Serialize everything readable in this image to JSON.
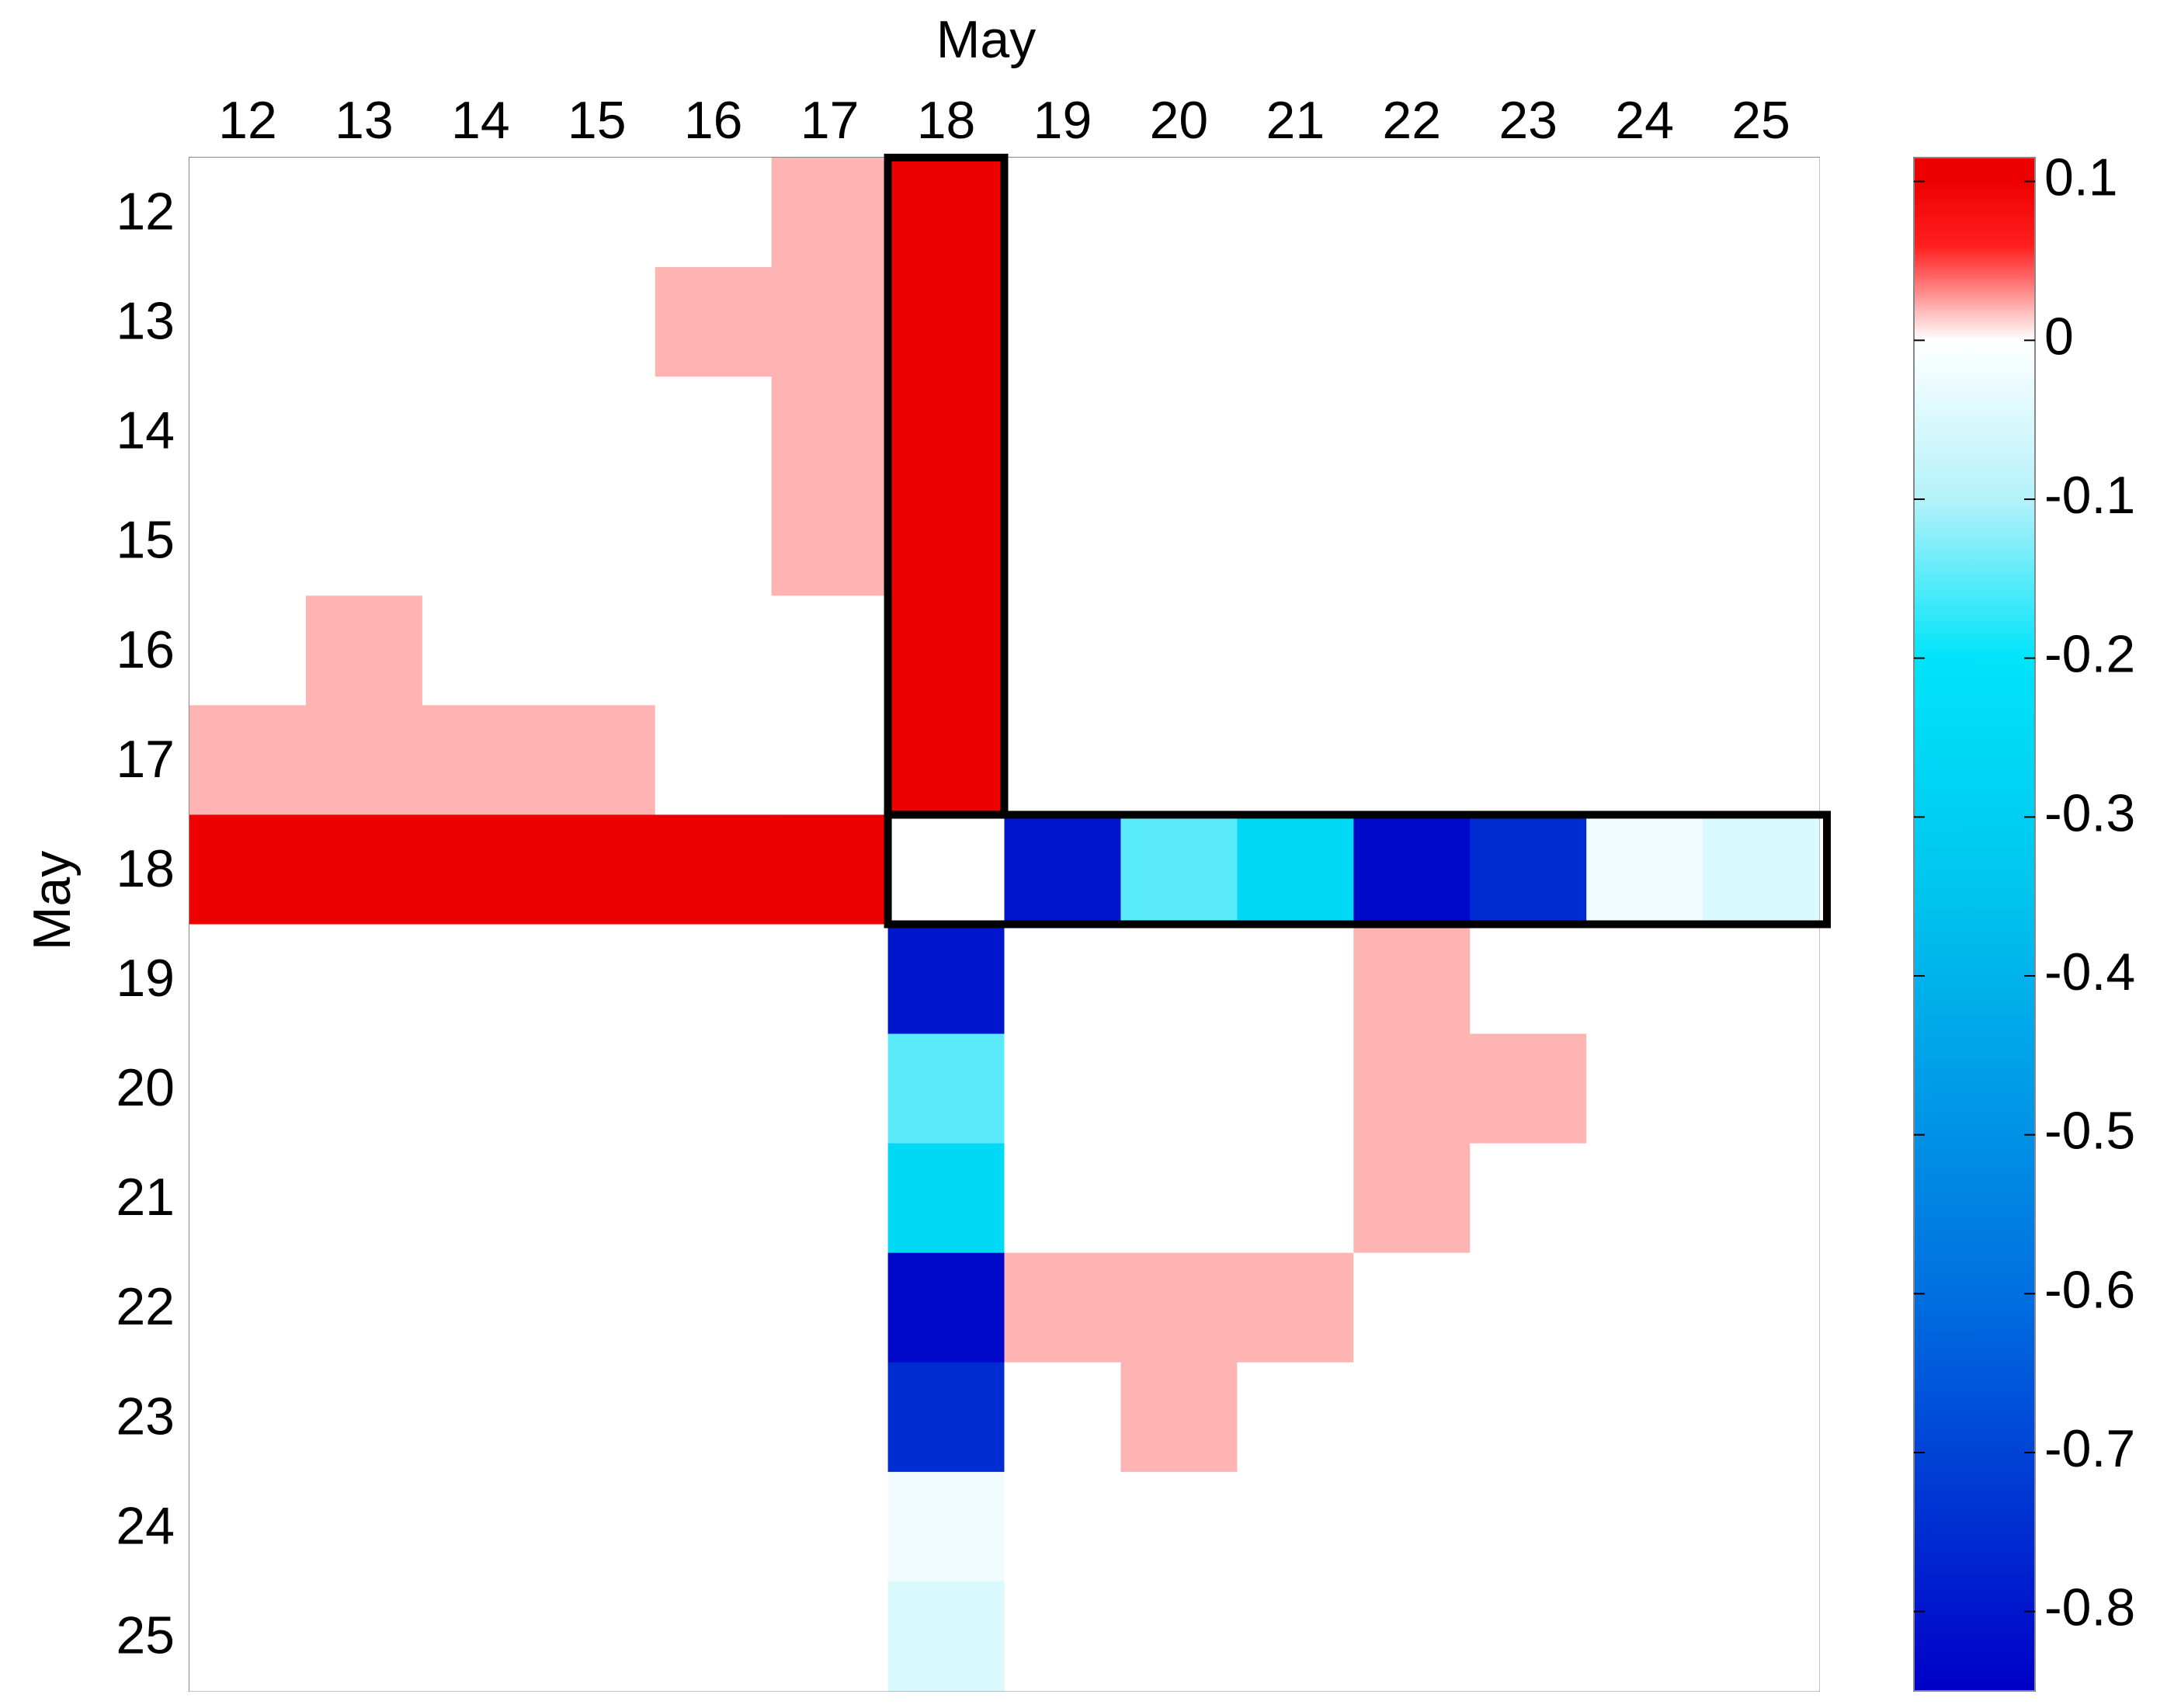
{
  "chart_data": {
    "type": "heatmap",
    "x_label": "May",
    "y_label": "May",
    "x_categories": [
      "12",
      "13",
      "14",
      "15",
      "16",
      "17",
      "18",
      "19",
      "20",
      "21",
      "22",
      "23",
      "24",
      "25"
    ],
    "y_categories": [
      "12",
      "13",
      "14",
      "15",
      "16",
      "17",
      "18",
      "19",
      "20",
      "21",
      "22",
      "23",
      "24",
      "25"
    ],
    "values": [
      [
        0,
        0,
        0,
        0,
        0,
        0.02,
        0.1,
        0,
        0,
        0,
        0,
        0,
        0,
        0
      ],
      [
        0,
        0,
        0,
        0,
        0.02,
        0.02,
        0.1,
        0,
        0,
        0,
        0,
        0,
        0,
        0
      ],
      [
        0,
        0,
        0,
        0,
        0,
        0.02,
        0.1,
        0,
        0,
        0,
        0,
        0,
        0,
        0
      ],
      [
        0,
        0,
        0,
        0,
        0,
        0.02,
        0.1,
        0,
        0,
        0,
        0,
        0,
        0,
        0
      ],
      [
        0,
        0.02,
        0,
        0,
        0,
        0,
        0.1,
        0,
        0,
        0,
        0,
        0,
        0,
        0
      ],
      [
        0.02,
        0.02,
        0.02,
        0.02,
        0,
        0,
        0.1,
        0,
        0,
        0,
        0,
        0,
        0,
        0
      ],
      [
        0.1,
        0.1,
        0.1,
        0.1,
        0.1,
        0.1,
        0,
        -0.8,
        -0.15,
        -0.25,
        -0.83,
        -0.75,
        -0.02,
        -0.05
      ],
      [
        0,
        0,
        0,
        0,
        0,
        0,
        -0.8,
        0,
        0,
        0,
        0.02,
        0,
        0,
        0
      ],
      [
        0,
        0,
        0,
        0,
        0,
        0,
        -0.15,
        0,
        0,
        0,
        0.02,
        0.02,
        0,
        0
      ],
      [
        0,
        0,
        0,
        0,
        0,
        0,
        -0.25,
        0,
        0,
        0,
        0.02,
        0,
        0,
        0
      ],
      [
        0,
        0,
        0,
        0,
        0,
        0,
        -0.83,
        0.02,
        0.02,
        0.02,
        0,
        0,
        0,
        0
      ],
      [
        0,
        0,
        0,
        0,
        0,
        0,
        -0.75,
        0,
        0.02,
        0,
        0,
        0,
        0,
        0
      ],
      [
        0,
        0,
        0,
        0,
        0,
        0,
        -0.02,
        0,
        0,
        0,
        0,
        0,
        0,
        0
      ],
      [
        0,
        0,
        0,
        0,
        0,
        0,
        -0.05,
        0,
        0,
        0,
        0,
        0,
        0,
        0
      ]
    ],
    "clim": [
      -0.85,
      0.115
    ],
    "cticks": [
      -0.8,
      -0.7,
      -0.6,
      -0.5,
      -0.4,
      -0.3,
      -0.2,
      -0.1,
      0,
      0.1
    ],
    "colorscale": [
      {
        "value": -0.85,
        "color": "#0000c8"
      },
      {
        "value": -0.6,
        "color": "#0070e0"
      },
      {
        "value": -0.35,
        "color": "#00c4ee"
      },
      {
        "value": -0.2,
        "color": "#00e4fa"
      },
      {
        "value": -0.1,
        "color": "#b4f2fa"
      },
      {
        "value": 0,
        "color": "#ffffff"
      },
      {
        "value": 0.02,
        "color": "#ffb4b4"
      },
      {
        "value": 0.04,
        "color": "#ff6464"
      },
      {
        "value": 0.06,
        "color": "#ff1e1e"
      },
      {
        "value": 0.1,
        "color": "#ee0000"
      }
    ]
  }
}
